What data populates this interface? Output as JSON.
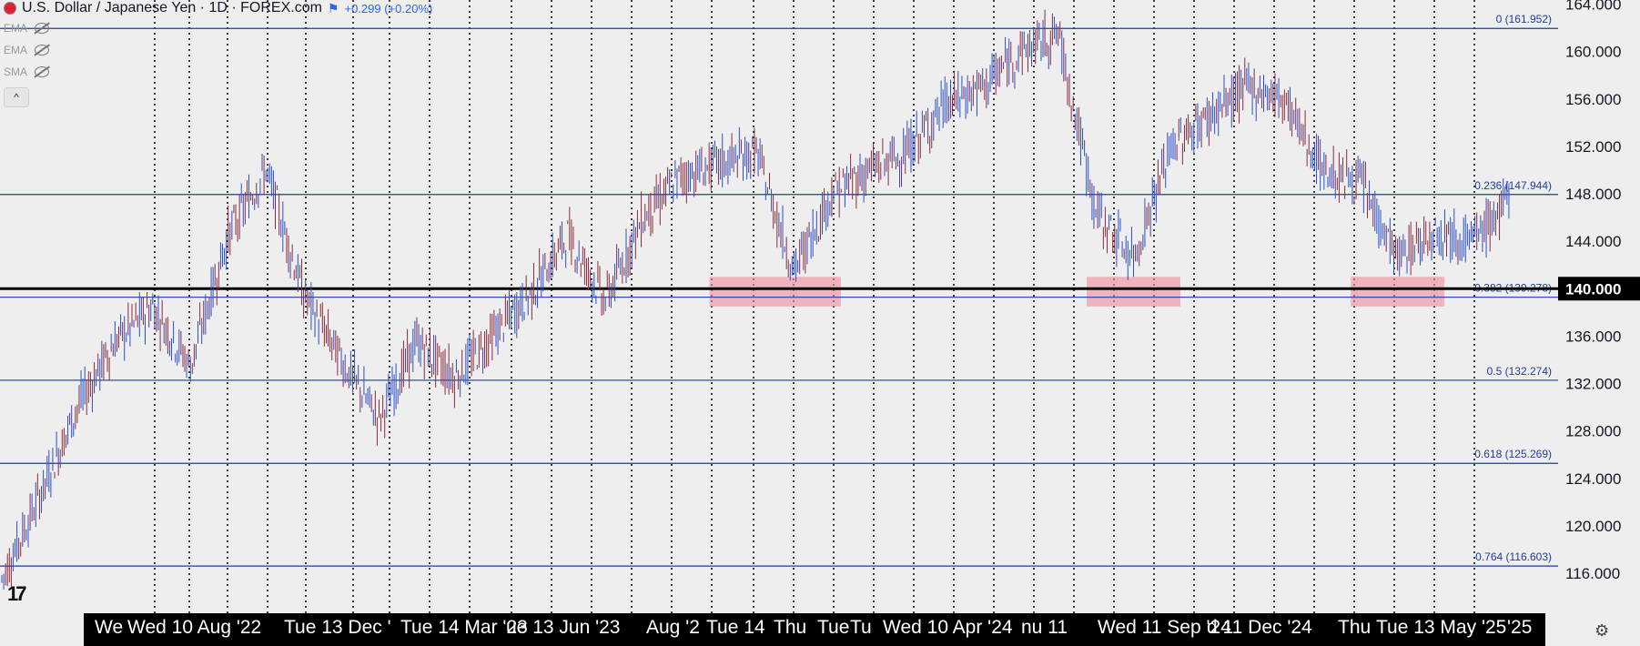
{
  "header": {
    "symbol_title": "U.S. Dollar / Japanese Yen · 1D · FOREX.com",
    "change": "+0.299 (+0.20%)"
  },
  "indicators": [
    {
      "label": "EMA",
      "icon": "eye-hidden-icon"
    },
    {
      "label": "EMA",
      "icon": "eye-hidden-icon"
    },
    {
      "label": "SMA",
      "icon": "eye-hidden-icon"
    }
  ],
  "collapse_icon": "^",
  "logo_text": "17",
  "settings_icon": "⚙",
  "colors": {
    "candle": "#2b4fc9",
    "fib_line": "#1f3d99",
    "support_line": "#000000",
    "highlight_box": "#f28a9b",
    "gridline": "#111111",
    "price_label_active_bg": "#000000"
  },
  "chart_data": {
    "type": "line",
    "title": "U.S. Dollar / Japanese Yen · 1D · FOREX.com",
    "xlabel": "",
    "ylabel": "",
    "ylim": [
      113,
      165
    ],
    "grid": "vertical dotted",
    "price_ticks": [
      "116.000",
      "120.000",
      "124.000",
      "128.000",
      "132.000",
      "136.000",
      "140.000",
      "144.000",
      "148.000",
      "152.000",
      "156.000",
      "160.000",
      "164.000"
    ],
    "price_tick_values": [
      116,
      120,
      124,
      128,
      132,
      136,
      140,
      144,
      148,
      152,
      156,
      160,
      164
    ],
    "highlighted_price": {
      "label": "140.000",
      "value": 140
    },
    "fib_levels": [
      {
        "label": "0 (161.952)",
        "value": 161.952
      },
      {
        "label": "0.236 (147.944)",
        "value": 147.944
      },
      {
        "label": "0.382 (139.278)",
        "value": 139.278
      },
      {
        "label": "0.5 (132.274)",
        "value": 132.274
      },
      {
        "label": "0.618 (125.269)",
        "value": 125.269
      },
      {
        "label": "0.764 (116.603)",
        "value": 116.603
      }
    ],
    "time_labels": [
      "We",
      "Wed 10 Aug '22",
      "Tue 13 Dec '",
      "Tue 14 Mar '23",
      "ue 13 Jun '23",
      "Aug '2",
      "Tue 14",
      "Thu",
      "Tue",
      "Tu",
      "Wed 10 Apr '24",
      "nu 11",
      "Wed 11 Sep '24",
      "d 11 Dec '24",
      "Thu",
      "Tue 13 May '25",
      "'25"
    ],
    "support_zones": [
      {
        "from": "2023-10",
        "to": "2024-01",
        "low": 138.5,
        "high": 141.0
      },
      {
        "from": "2024-08",
        "to": "2024-10",
        "low": 138.5,
        "high": 141.0
      },
      {
        "from": "2025-03",
        "to": "2025-05",
        "low": 138.5,
        "high": 141.0
      }
    ],
    "series": [
      {
        "x": [
          "2022-03",
          "2022-04",
          "2022-05",
          "2022-06",
          "2022-07",
          "2022-08",
          "2022-09",
          "2022-10",
          "2022-11",
          "2022-12",
          "2023-01",
          "2023-02",
          "2023-03",
          "2023-04",
          "2023-05",
          "2023-06",
          "2023-07",
          "2023-08",
          "2023-09",
          "2023-10",
          "2023-11",
          "2023-12",
          "2024-01",
          "2024-02",
          "2024-03",
          "2024-04",
          "2024-05",
          "2024-06",
          "2024-07",
          "2024-08",
          "2024-09",
          "2024-10",
          "2024-11",
          "2024-12",
          "2025-01",
          "2025-02",
          "2025-03",
          "2025-04",
          "2025-05",
          "2025-06",
          "2025-07"
        ],
        "values": [
          115.5,
          122.5,
          130.0,
          135.5,
          138.5,
          133.5,
          144.5,
          150.0,
          139.5,
          134.0,
          129.0,
          135.5,
          132.5,
          136.0,
          139.5,
          144.5,
          139.0,
          146.0,
          149.5,
          150.5,
          151.5,
          141.5,
          148.0,
          150.0,
          151.5,
          155.5,
          157.0,
          160.0,
          161.5,
          146.5,
          142.5,
          152.0,
          154.5,
          157.0,
          156.0,
          150.0,
          149.0,
          142.5,
          145.0,
          144.0,
          147.5
        ]
      }
    ]
  },
  "time_axis": {
    "labels": [
      "We",
      "Wed 10 Aug '22",
      "Tue 13 Dec '",
      "Tue 14 Mar '23",
      "ue 13 Jun '23",
      "Aug '2",
      "Tue 14",
      "Thu",
      "Tue",
      "Tu",
      "Wed 10 Apr '24",
      "nu 11",
      "Wed 11 Sep '24",
      "d 11 Dec '24",
      "Thu",
      "Tue 13 May '25",
      "'25"
    ]
  }
}
